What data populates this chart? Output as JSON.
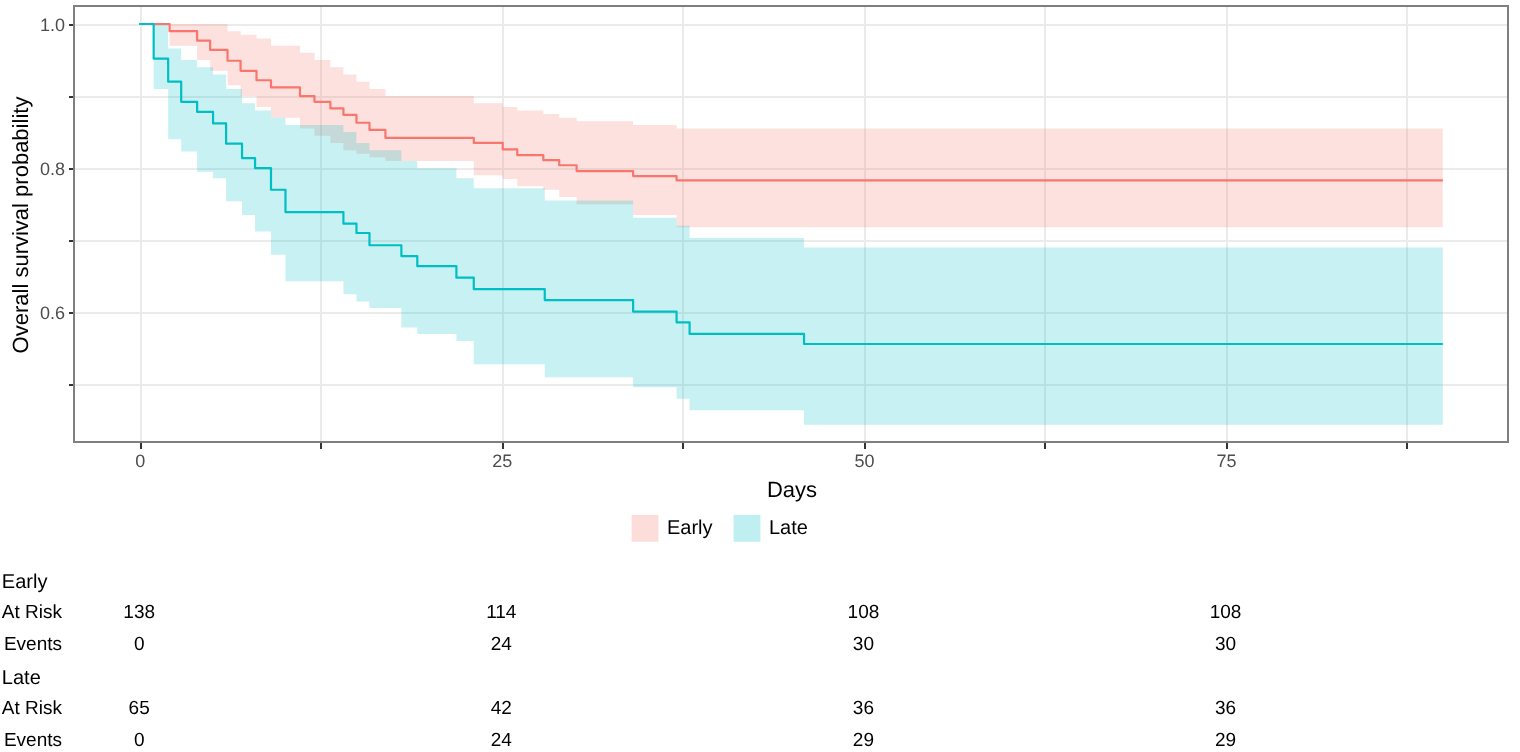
{
  "chart_data": [
    {
      "type": "step",
      "xlabel": "Days",
      "ylabel": "Overall survival probability",
      "xlim": [
        -4.5,
        94.5
      ],
      "ylim": [
        0.42,
        1.025
      ],
      "xticks": [
        0,
        {
          "value": 12.5,
          "label": null
        },
        25,
        {
          "value": 37.5,
          "label": null
        },
        50,
        {
          "value": 62.5,
          "label": null
        },
        75,
        {
          "value": 87.5,
          "label": null
        }
      ],
      "yticks": [
        {
          "value": 0.5,
          "label": null
        },
        0.6,
        {
          "value": 0.7,
          "label": null
        },
        0.8,
        {
          "value": 0.9,
          "label": null
        },
        {
          "value": 1,
          "label": "1.0"
        }
      ],
      "grid": true,
      "legend": "bottom",
      "series": [
        {
          "name": "Early",
          "color": "#f8766d",
          "x": [
            0,
            2.1,
            4.0,
            4.9,
            6.1,
            7.0,
            8.1,
            9.1,
            11.1,
            12.1,
            13.2,
            14.1,
            15.0,
            15.9,
            17.0,
            23.1,
            25.1,
            26.1,
            27.9,
            29.0,
            30.2,
            34.1,
            37.1,
            90
          ],
          "values": [
            1,
            0.99,
            0.977,
            0.964,
            0.949,
            0.935,
            0.922,
            0.912,
            0.9,
            0.892,
            0.883,
            0.874,
            0.863,
            0.853,
            0.842,
            0.835,
            0.826,
            0.818,
            0.811,
            0.804,
            0.796,
            0.789,
            0.783,
            0.783
          ],
          "upper": [
            1,
            1,
            1,
            1,
            0.99,
            0.985,
            0.98,
            0.97,
            0.96,
            0.95,
            0.94,
            0.93,
            0.92,
            0.91,
            0.9,
            0.89,
            0.885,
            0.88,
            0.875,
            0.87,
            0.865,
            0.86,
            0.855,
            0.855
          ],
          "lower": [
            1,
            0.97,
            0.95,
            0.935,
            0.915,
            0.9,
            0.885,
            0.87,
            0.855,
            0.845,
            0.835,
            0.825,
            0.82,
            0.815,
            0.81,
            0.79,
            0.785,
            0.775,
            0.77,
            0.76,
            0.75,
            0.735,
            0.718,
            0.718
          ]
        },
        {
          "name": "Late",
          "color": "#00bfc4",
          "x": [
            0,
            1.0,
            2.0,
            2.9,
            4.0,
            5.1,
            6.0,
            7.1,
            8.0,
            9.1,
            10.1,
            14.1,
            15.0,
            15.9,
            18.1,
            19.2,
            21.9,
            23.1,
            28.0,
            34.1,
            37.1,
            38.0,
            45.9,
            90
          ],
          "values": [
            1,
            0.952,
            0.92,
            0.892,
            0.878,
            0.862,
            0.834,
            0.814,
            0.8,
            0.77,
            0.739,
            0.723,
            0.71,
            0.693,
            0.678,
            0.664,
            0.648,
            0.632,
            0.617,
            0.601,
            0.586,
            0.57,
            0.556,
            0.556
          ],
          "upper": [
            1,
            1,
            0.966,
            0.95,
            0.94,
            0.93,
            0.91,
            0.89,
            0.88,
            0.87,
            0.86,
            0.85,
            0.835,
            0.825,
            0.81,
            0.8,
            0.786,
            0.772,
            0.755,
            0.731,
            0.72,
            0.703,
            0.69,
            0.69
          ],
          "lower": [
            1,
            0.91,
            0.84,
            0.823,
            0.795,
            0.786,
            0.754,
            0.735,
            0.712,
            0.68,
            0.643,
            0.625,
            0.615,
            0.606,
            0.579,
            0.57,
            0.56,
            0.528,
            0.51,
            0.496,
            0.48,
            0.464,
            0.444,
            0.444
          ]
        }
      ]
    },
    {
      "type": "other",
      "title": "Early",
      "annotations": [
        "At Risk",
        "138",
        "114",
        "108",
        "108",
        "Events",
        "0",
        "24",
        "30",
        "30"
      ]
    },
    {
      "type": "other",
      "title": "Late",
      "annotations": [
        "At Risk",
        "65",
        "42",
        "36",
        "36",
        "Events",
        "0",
        "24",
        "29",
        "29"
      ]
    }
  ]
}
